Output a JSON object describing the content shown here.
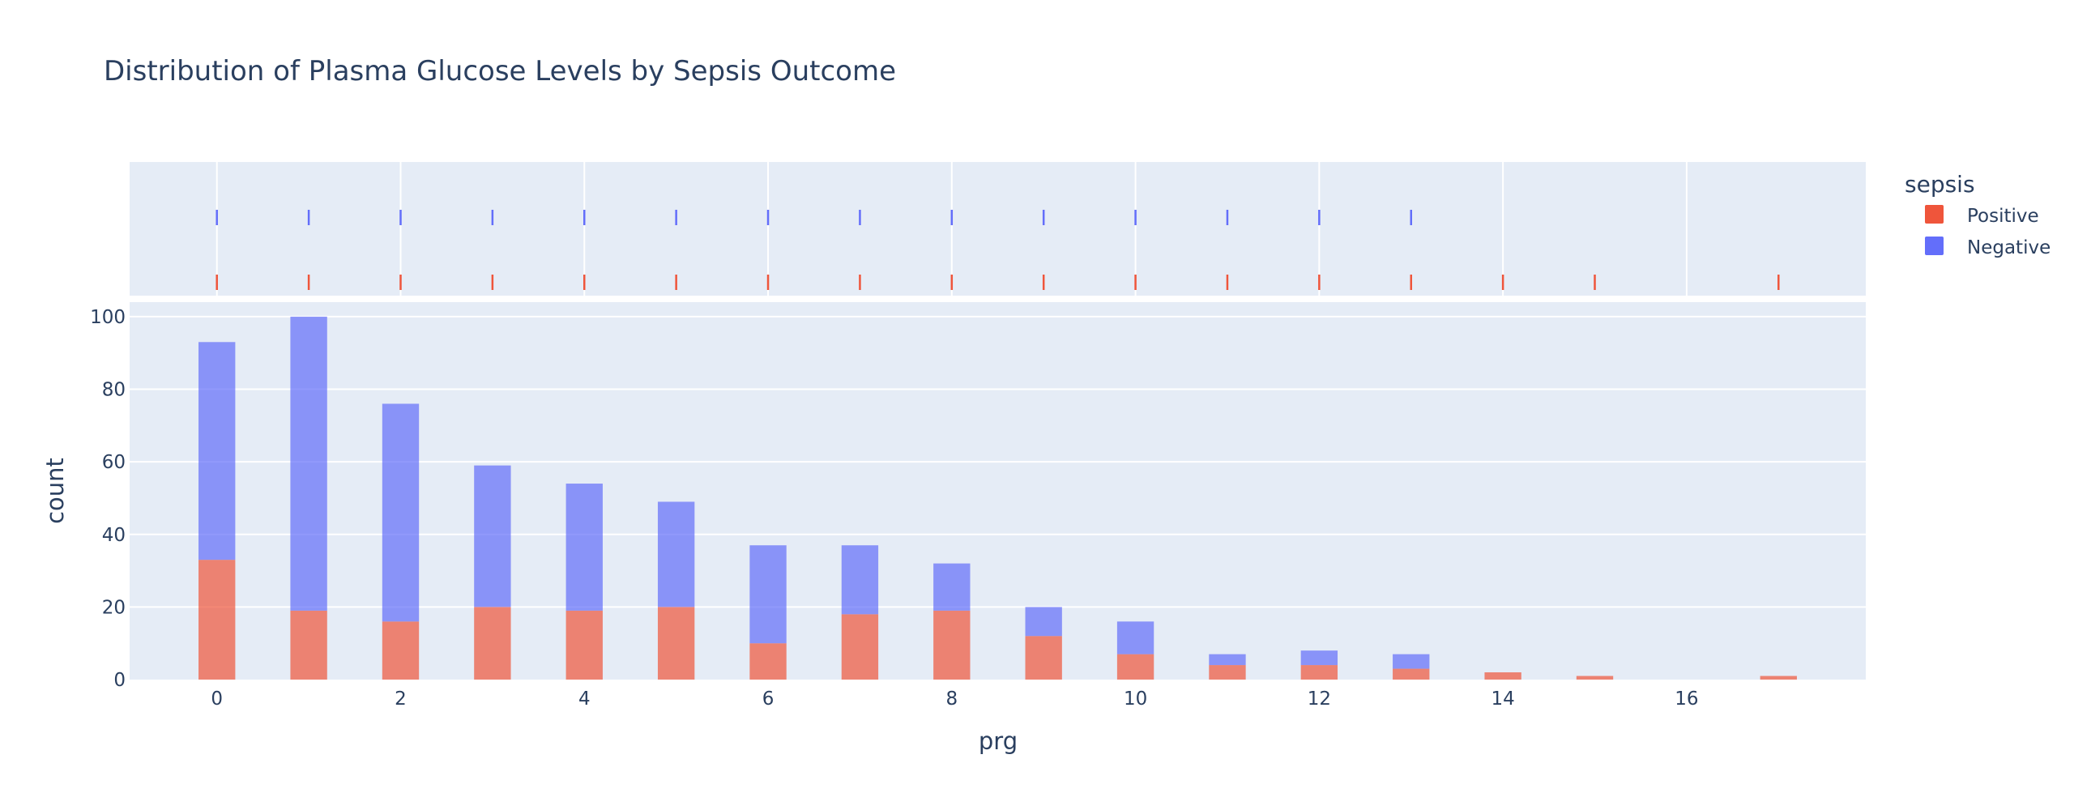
{
  "chart_data": {
    "type": "bar",
    "title": "Distribution of Plasma Glucose Levels by Sepsis Outcome",
    "xlabel": "prg",
    "ylabel": "count",
    "barmode": "stacked",
    "xlim": [
      -0.95,
      17.95
    ],
    "ylim": [
      0,
      104
    ],
    "x_ticks": [
      0,
      2,
      4,
      6,
      8,
      10,
      12,
      14,
      16
    ],
    "y_ticks": [
      0,
      20,
      40,
      60,
      80,
      100
    ],
    "grid": true,
    "legend": {
      "title": "sepsis",
      "position": "top-right"
    },
    "x": [
      0,
      1,
      2,
      3,
      4,
      5,
      6,
      7,
      8,
      9,
      10,
      11,
      12,
      13,
      14,
      15,
      17
    ],
    "series": [
      {
        "name": "Positive",
        "color": "#EF553B",
        "values": [
          33,
          19,
          16,
          20,
          19,
          20,
          10,
          18,
          19,
          12,
          7,
          4,
          4,
          3,
          2,
          1,
          1
        ],
        "rug_x": [
          0,
          1,
          2,
          3,
          4,
          5,
          6,
          7,
          8,
          9,
          10,
          11,
          12,
          13,
          14,
          15,
          17
        ]
      },
      {
        "name": "Negative",
        "color": "#636EFA",
        "values": [
          60,
          81,
          60,
          39,
          35,
          29,
          27,
          19,
          13,
          8,
          9,
          3,
          4,
          4,
          0,
          0,
          0
        ],
        "rug_x": [
          0,
          1,
          2,
          3,
          4,
          5,
          6,
          7,
          8,
          9,
          10,
          11,
          12,
          13
        ]
      }
    ]
  }
}
